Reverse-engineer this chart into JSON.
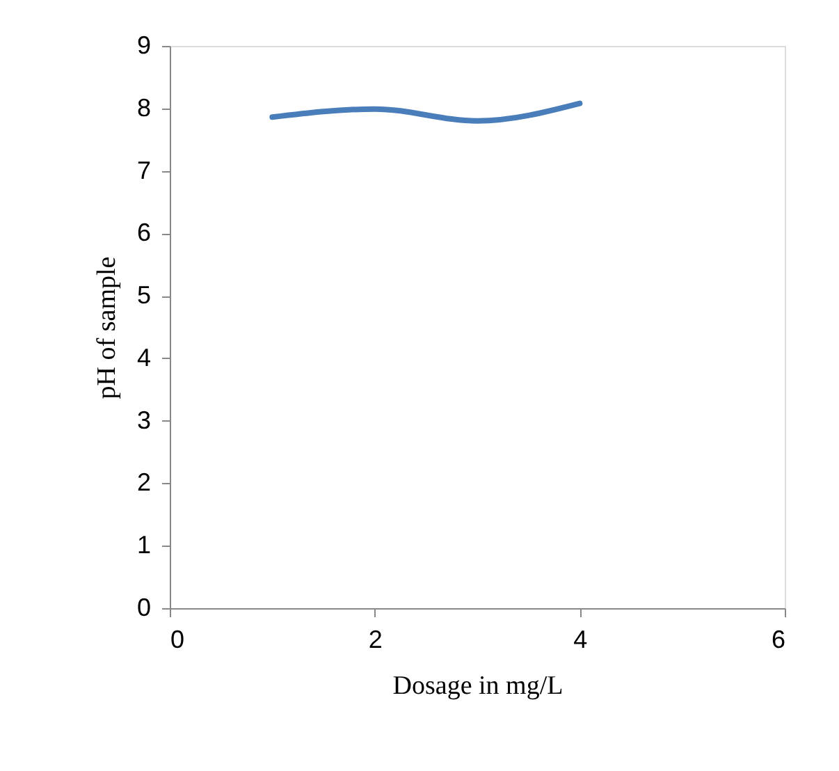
{
  "chart_data": {
    "type": "line",
    "xlabel": "Dosage in mg/L",
    "ylabel": "pH of sample",
    "x": [
      1,
      2,
      3,
      4
    ],
    "series": [
      {
        "color": "#4a7ebb",
        "values": [
          7.86,
          7.99,
          7.8,
          8.08
        ]
      }
    ],
    "xlim": [
      0,
      6
    ],
    "xticks": [
      0,
      2,
      4,
      6
    ],
    "ylim": [
      0,
      9
    ],
    "yticks": [
      0,
      1,
      2,
      3,
      4,
      5,
      6,
      7,
      8,
      9
    ],
    "grid": false,
    "legend": false,
    "marker": "none",
    "line_style": "solid"
  }
}
